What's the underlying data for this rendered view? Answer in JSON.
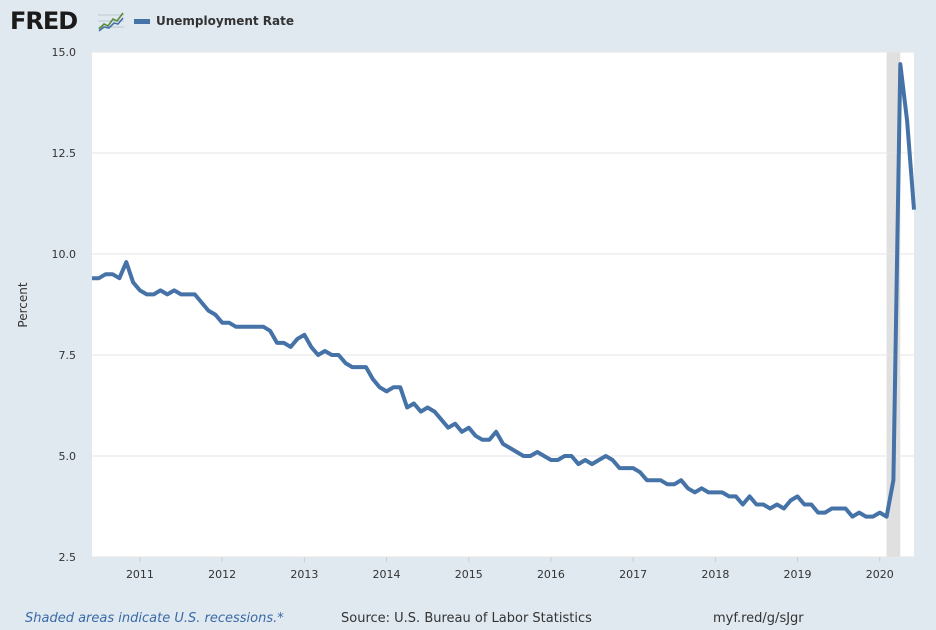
{
  "header": {
    "logo_text": "FRED",
    "logo_icon": "fred-graph-logo-icon",
    "legend_label": "Unemployment Rate"
  },
  "footer": {
    "recession_note": "Shaded areas indicate U.S. recessions.*",
    "source": "Source: U.S. Bureau of Labor Statistics",
    "short_link": "myf.red/g/sJgr"
  },
  "colors": {
    "series": "#4572a7",
    "recession": "#e0e0e0",
    "page_bg": "#e1e9f0",
    "plot_bg": "#ffffff",
    "grid": "#e6e6e6"
  },
  "chart_data": {
    "type": "line",
    "ylabel": "Percent",
    "xlabel": "",
    "ylim": [
      2.5,
      15.0
    ],
    "yticks": [
      "2.5",
      "5.0",
      "7.5",
      "10.0",
      "12.5",
      "15.0"
    ],
    "xticks": [
      "2011",
      "2012",
      "2013",
      "2014",
      "2015",
      "2016",
      "2017",
      "2018",
      "2019",
      "2020"
    ],
    "x_range": [
      "2010-06",
      "2020-06"
    ],
    "grid": true,
    "legend_position": "top-left",
    "recessions": [
      [
        "2020-02",
        "2020-04"
      ]
    ],
    "series": [
      {
        "name": "Unemployment Rate",
        "x": [
          "2010-06",
          "2010-07",
          "2010-08",
          "2010-09",
          "2010-10",
          "2010-11",
          "2010-12",
          "2011-01",
          "2011-02",
          "2011-03",
          "2011-04",
          "2011-05",
          "2011-06",
          "2011-07",
          "2011-08",
          "2011-09",
          "2011-10",
          "2011-11",
          "2011-12",
          "2012-01",
          "2012-02",
          "2012-03",
          "2012-04",
          "2012-05",
          "2012-06",
          "2012-07",
          "2012-08",
          "2012-09",
          "2012-10",
          "2012-11",
          "2012-12",
          "2013-01",
          "2013-02",
          "2013-03",
          "2013-04",
          "2013-05",
          "2013-06",
          "2013-07",
          "2013-08",
          "2013-09",
          "2013-10",
          "2013-11",
          "2013-12",
          "2014-01",
          "2014-02",
          "2014-03",
          "2014-04",
          "2014-05",
          "2014-06",
          "2014-07",
          "2014-08",
          "2014-09",
          "2014-10",
          "2014-11",
          "2014-12",
          "2015-01",
          "2015-02",
          "2015-03",
          "2015-04",
          "2015-05",
          "2015-06",
          "2015-07",
          "2015-08",
          "2015-09",
          "2015-10",
          "2015-11",
          "2015-12",
          "2016-01",
          "2016-02",
          "2016-03",
          "2016-04",
          "2016-05",
          "2016-06",
          "2016-07",
          "2016-08",
          "2016-09",
          "2016-10",
          "2016-11",
          "2016-12",
          "2017-01",
          "2017-02",
          "2017-03",
          "2017-04",
          "2017-05",
          "2017-06",
          "2017-07",
          "2017-08",
          "2017-09",
          "2017-10",
          "2017-11",
          "2017-12",
          "2018-01",
          "2018-02",
          "2018-03",
          "2018-04",
          "2018-05",
          "2018-06",
          "2018-07",
          "2018-08",
          "2018-09",
          "2018-10",
          "2018-11",
          "2018-12",
          "2019-01",
          "2019-02",
          "2019-03",
          "2019-04",
          "2019-05",
          "2019-06",
          "2019-07",
          "2019-08",
          "2019-09",
          "2019-10",
          "2019-11",
          "2019-12",
          "2020-01",
          "2020-02",
          "2020-03",
          "2020-04",
          "2020-05",
          "2020-06"
        ],
        "values": [
          9.4,
          9.4,
          9.5,
          9.5,
          9.4,
          9.8,
          9.3,
          9.1,
          9.0,
          9.0,
          9.1,
          9.0,
          9.1,
          9.0,
          9.0,
          9.0,
          8.8,
          8.6,
          8.5,
          8.3,
          8.3,
          8.2,
          8.2,
          8.2,
          8.2,
          8.2,
          8.1,
          7.8,
          7.8,
          7.7,
          7.9,
          8.0,
          7.7,
          7.5,
          7.6,
          7.5,
          7.5,
          7.3,
          7.2,
          7.2,
          7.2,
          6.9,
          6.7,
          6.6,
          6.7,
          6.7,
          6.2,
          6.3,
          6.1,
          6.2,
          6.1,
          5.9,
          5.7,
          5.8,
          5.6,
          5.7,
          5.5,
          5.4,
          5.4,
          5.6,
          5.3,
          5.2,
          5.1,
          5.0,
          5.0,
          5.1,
          5.0,
          4.9,
          4.9,
          5.0,
          5.0,
          4.8,
          4.9,
          4.8,
          4.9,
          5.0,
          4.9,
          4.7,
          4.7,
          4.7,
          4.6,
          4.4,
          4.4,
          4.4,
          4.3,
          4.3,
          4.4,
          4.2,
          4.1,
          4.2,
          4.1,
          4.1,
          4.1,
          4.0,
          4.0,
          3.8,
          4.0,
          3.8,
          3.8,
          3.7,
          3.8,
          3.7,
          3.9,
          4.0,
          3.8,
          3.8,
          3.6,
          3.6,
          3.7,
          3.7,
          3.7,
          3.5,
          3.6,
          3.5,
          3.5,
          3.6,
          3.5,
          4.4,
          14.7,
          13.3,
          11.1
        ]
      }
    ]
  }
}
